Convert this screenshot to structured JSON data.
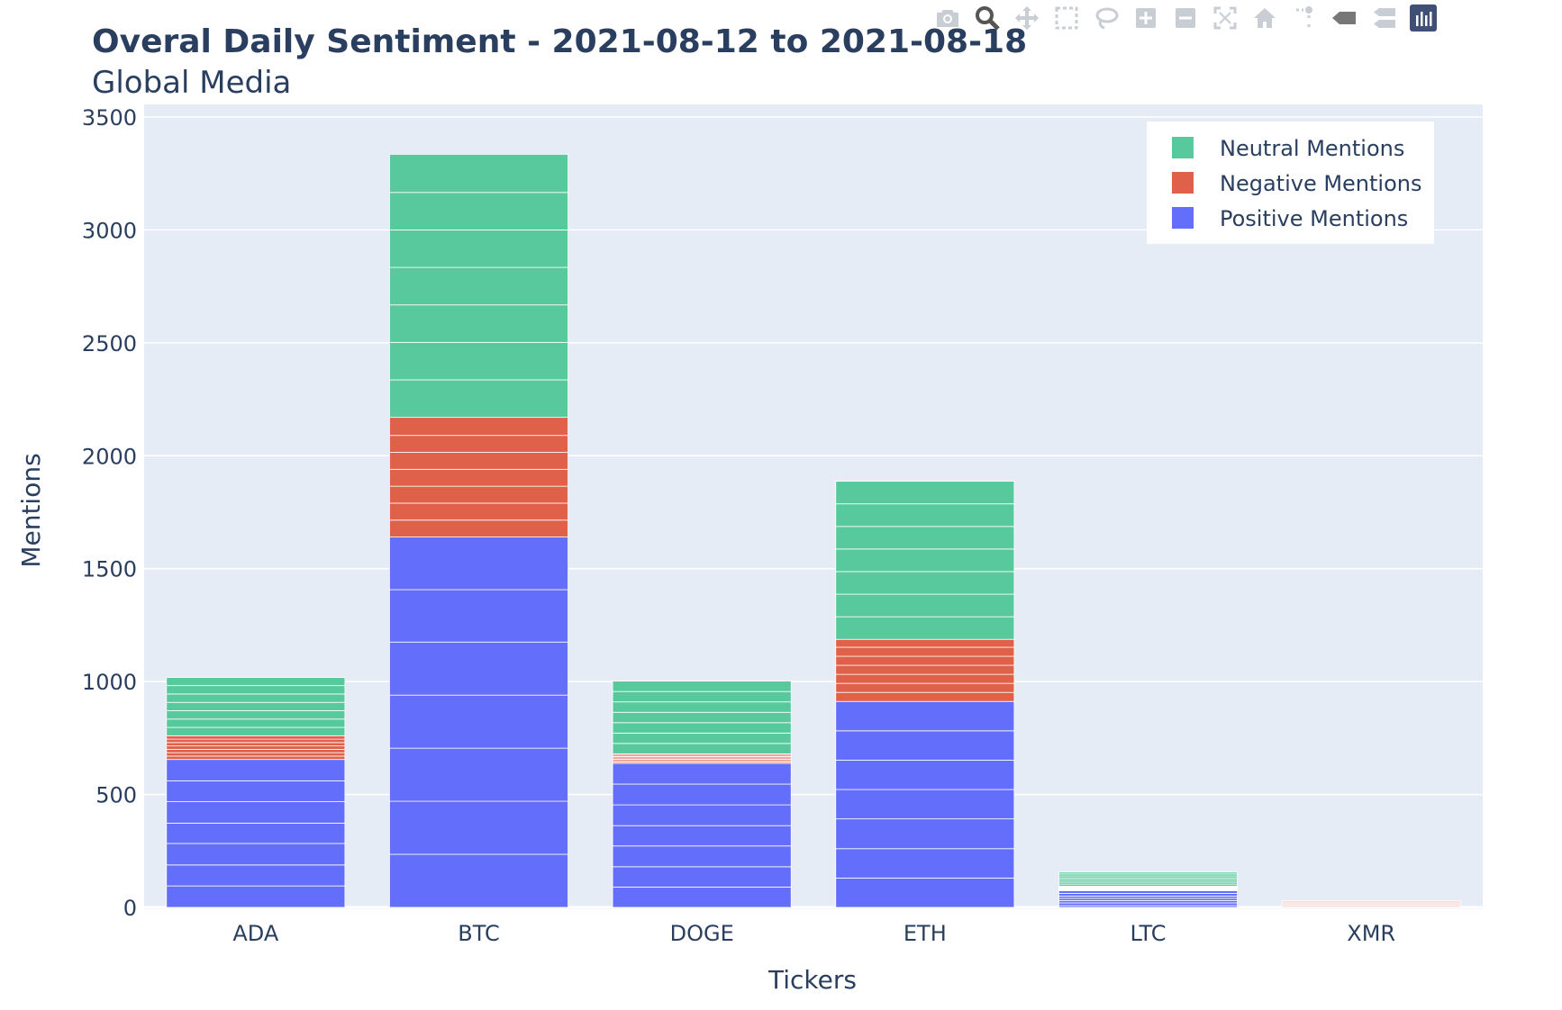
{
  "colors": {
    "positive": "#636efa",
    "negative": "#e0614a",
    "neutral": "#57c99c",
    "plot_bg": "#e5ecf6",
    "text": "#2a3f5f"
  },
  "modebar": [
    {
      "name": "camera-icon",
      "label": "Download plot as a png"
    },
    {
      "name": "zoom-icon",
      "label": "Zoom"
    },
    {
      "name": "pan-icon",
      "label": "Pan"
    },
    {
      "name": "box-select-icon",
      "label": "Box Select"
    },
    {
      "name": "lasso-select-icon",
      "label": "Lasso Select"
    },
    {
      "name": "zoom-in-icon",
      "label": "Zoom in"
    },
    {
      "name": "zoom-out-icon",
      "label": "Zoom out"
    },
    {
      "name": "autoscale-icon",
      "label": "Autoscale"
    },
    {
      "name": "reset-axes-icon",
      "label": "Reset axes"
    },
    {
      "name": "spike-lines-icon",
      "label": "Toggle Spike Lines"
    },
    {
      "name": "hover-closest-icon",
      "label": "Show closest data on hover"
    },
    {
      "name": "hover-compare-icon",
      "label": "Compare data on hover"
    },
    {
      "name": "plotly-logo-icon",
      "label": "Produced with Plotly"
    }
  ],
  "chart_data": {
    "type": "bar",
    "barmode": "stack",
    "title": "Overal Daily Sentiment - 2021-08-12 to 2021-08-18",
    "subtitle": "Global Media",
    "xlabel": "Tickers",
    "ylabel": "Mentions",
    "ylim": [
      0,
      3500
    ],
    "yticks": [
      0,
      500,
      1000,
      1500,
      2000,
      2500,
      3000,
      3500
    ],
    "grid": true,
    "legend_position": "top-right",
    "categories": [
      "ADA",
      "BTC",
      "DOGE",
      "ETH",
      "LTC",
      "XMR"
    ],
    "series": [
      {
        "name": "Positive Mentions",
        "color_key": "positive",
        "segments": [
          [
            95,
            93,
            95,
            90,
            95,
            92,
            95
          ],
          [
            235,
            235,
            235,
            235,
            235,
            232,
            233
          ],
          [
            90,
            90,
            92,
            90,
            92,
            92,
            92
          ],
          [
            130,
            130,
            132,
            130,
            130,
            130,
            130
          ],
          [
            8,
            12,
            10,
            10,
            10,
            12,
            12
          ],
          [
            1
          ]
        ],
        "values": [
          655,
          1640,
          638,
          912,
          74,
          1
        ]
      },
      {
        "name": "Negative Mentions",
        "color_key": "negative",
        "segments": [
          [
            15,
            15,
            15,
            15,
            15,
            15,
            15
          ],
          [
            75,
            75,
            75,
            75,
            75,
            75,
            80
          ],
          [
            6,
            6,
            6,
            6,
            6,
            6,
            6
          ],
          [
            40,
            40,
            40,
            40,
            40,
            40,
            35
          ],
          [
            3,
            3,
            3,
            3,
            3,
            3,
            2
          ],
          [
            4,
            4,
            4,
            4,
            4,
            4,
            4
          ]
        ],
        "values": [
          105,
          530,
          42,
          275,
          20,
          28
        ]
      },
      {
        "name": "Neutral Mentions",
        "color_key": "neutral",
        "segments": [
          [
            37,
            37,
            37,
            37,
            37,
            37,
            36
          ],
          [
            166,
            166,
            166,
            166,
            166,
            166,
            169
          ],
          [
            46,
            46,
            46,
            46,
            46,
            46,
            46
          ],
          [
            100,
            100,
            100,
            100,
            100,
            100,
            100
          ],
          [
            9,
            9,
            9,
            9,
            9,
            9,
            8
          ],
          [
            0
          ]
        ],
        "values": [
          258,
          1165,
          322,
          700,
          62,
          0
        ]
      }
    ]
  }
}
